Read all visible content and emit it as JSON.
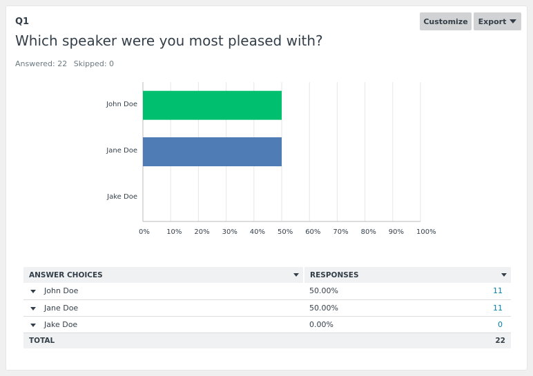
{
  "question": {
    "number": "Q1",
    "title": "Which speaker were you most pleased with?",
    "answered": "Answered: 22",
    "skipped": "Skipped: 0"
  },
  "toolbar": {
    "customize_label": "Customize",
    "export_label": "Export"
  },
  "chart_data": {
    "type": "bar",
    "orientation": "horizontal",
    "categories": [
      "John Doe",
      "Jane Doe",
      "Jake Doe"
    ],
    "values": [
      50,
      50,
      0
    ],
    "colors": [
      "#00bf6f",
      "#507cb6",
      "#f9be00"
    ],
    "xlim": [
      0,
      100
    ],
    "xticks": [
      "0%",
      "10%",
      "20%",
      "30%",
      "40%",
      "50%",
      "60%",
      "70%",
      "80%",
      "90%",
      "100%"
    ],
    "grid": true
  },
  "table": {
    "headers": {
      "choices": "ANSWER CHOICES",
      "responses": "RESPONSES"
    },
    "rows": [
      {
        "choice": "John Doe",
        "percent": "50.00%",
        "count": "11"
      },
      {
        "choice": "Jane Doe",
        "percent": "50.00%",
        "count": "11"
      },
      {
        "choice": "Jake Doe",
        "percent": "0.00%",
        "count": "0"
      }
    ],
    "total": {
      "label": "TOTAL",
      "count": "22"
    }
  },
  "colors": {
    "accent": "#00bf6f",
    "link": "#007faa",
    "text": "#333e48"
  }
}
